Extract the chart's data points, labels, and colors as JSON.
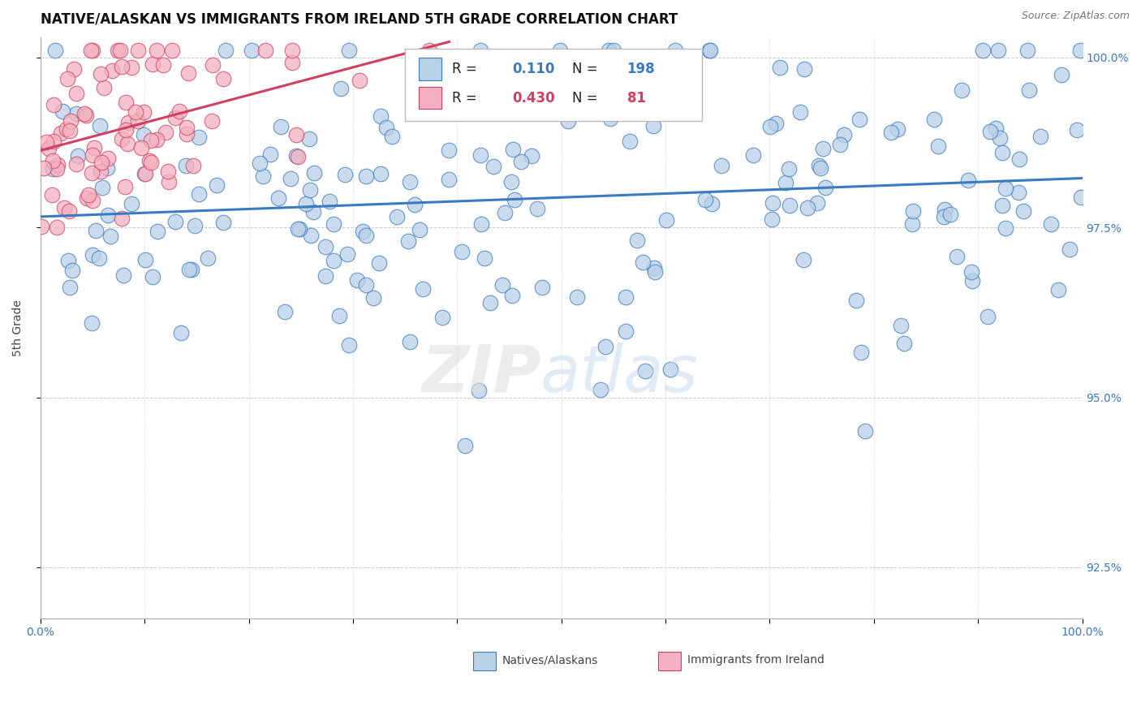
{
  "title": "NATIVE/ALASKAN VS IMMIGRANTS FROM IRELAND 5TH GRADE CORRELATION CHART",
  "source": "Source: ZipAtlas.com",
  "ylabel": "5th Grade",
  "legend_blue_label": "Natives/Alaskans",
  "legend_pink_label": "Immigrants from Ireland",
  "R_blue": 0.11,
  "N_blue": 198,
  "R_pink": 0.43,
  "N_pink": 81,
  "blue_color": "#b8d0e8",
  "pink_color": "#f4b0c0",
  "blue_line_color": "#3a7bbf",
  "pink_line_color": "#d04060",
  "xlim": [
    0.0,
    1.0
  ],
  "ylim": [
    0.9175,
    1.003
  ],
  "figsize": [
    14.06,
    8.92
  ],
  "dpi": 100,
  "seed_blue": 77,
  "seed_pink": 88
}
